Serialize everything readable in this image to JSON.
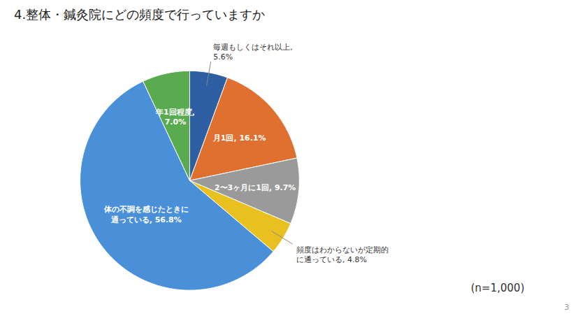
{
  "chart_data": {
    "type": "pie",
    "title": "4.整体・鍼灸院にどの頻度で行っていますか",
    "values": [
      5.6,
      16.1,
      9.7,
      4.8,
      56.8,
      7.0
    ],
    "colors": [
      "#2e5fa3",
      "#e07030",
      "#9a9a9a",
      "#e8c020",
      "#4a90d9",
      "#5aaa50"
    ],
    "data_labels": true,
    "value_labels": [
      "毎週もしくはそれ以上,\n5.6%",
      "月1回, 16.1%",
      "2〜3ヶ月に1回, 9.7%",
      "頻度はわからないが定期的\nに通っている, 4.8%",
      "体の不調を感じたときに\n通っている, 56.8%",
      "年1回程度,\n7.0%"
    ],
    "annotations": [
      "(n=1,000)",
      "3"
    ]
  }
}
